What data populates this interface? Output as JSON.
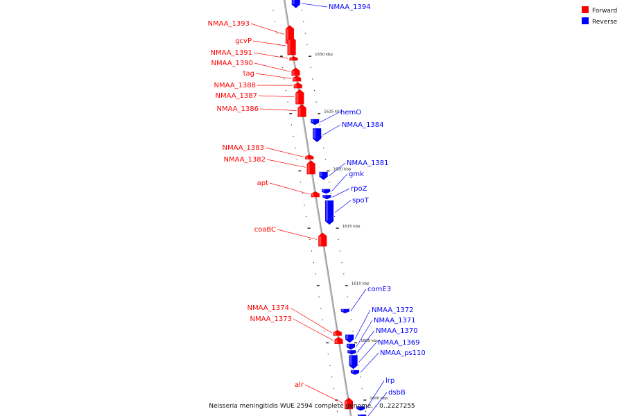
{
  "legend": {
    "forward": {
      "label": "Forward",
      "color": "#ff0000"
    },
    "reverse": {
      "label": "Reverse",
      "color": "#0000ff"
    }
  },
  "caption": "Neisseria meningitidis WUE 2594 complete genome. - 0..2227255",
  "backbone": {
    "top_kbp": 1634.9,
    "bottom_kbp": 1598.6,
    "color": "#999999"
  },
  "scale": {
    "labels": [
      {
        "kbp": 1630,
        "text": "1630 kbp"
      },
      {
        "kbp": 1625,
        "text": "1625 kbp"
      },
      {
        "kbp": 1620,
        "text": "1620 kbp"
      },
      {
        "kbp": 1615,
        "text": "1615 kbp"
      },
      {
        "kbp": 1610,
        "text": "1610 kbp"
      },
      {
        "kbp": 1605,
        "text": "1605 kbp"
      },
      {
        "kbp": 1600,
        "text": "1600 kbp"
      }
    ]
  },
  "forward_genes": [
    {
      "name": "NMAA_1393",
      "start": 1632.7,
      "end": 1631.1
    },
    {
      "name": "gcvP",
      "start": 1631.7,
      "end": 1630.1
    },
    {
      "name": "NMAA_1391",
      "start": 1629.9,
      "end": 1629.7
    },
    {
      "name": "NMAA_1390",
      "start": 1629.0,
      "end": 1628.3
    },
    {
      "name": "tag",
      "start": 1628.3,
      "end": 1627.8
    },
    {
      "name": "NMAA_1388",
      "start": 1627.7,
      "end": 1627.2
    },
    {
      "name": "NMAA_1387",
      "start": 1627.1,
      "end": 1625.8
    },
    {
      "name": "NMAA_1386",
      "start": 1625.8,
      "end": 1624.7
    },
    {
      "name": "NMAA_1383",
      "start": 1621.4,
      "end": 1621.0
    },
    {
      "name": "NMAA_1382",
      "start": 1620.9,
      "end": 1619.7
    },
    {
      "name": "apt",
      "start": 1618.2,
      "end": 1617.7
    },
    {
      "name": "coaBC",
      "start": 1614.6,
      "end": 1613.4
    },
    {
      "name": "NMAA_1374",
      "start": 1606.1,
      "end": 1605.6
    },
    {
      "name": "NMAA_1373",
      "start": 1605.5,
      "end": 1604.9
    },
    {
      "name": "alr",
      "start": 1600.2,
      "end": 1599.2
    }
  ],
  "reverse_genes": [
    {
      "name": "NMAA_1394",
      "start": 1634.2,
      "end": 1635.0
    },
    {
      "name": "hemO",
      "start": 1624.0,
      "end": 1624.5
    },
    {
      "name": "NMAA_1384",
      "start": 1622.5,
      "end": 1623.7
    },
    {
      "name": "NMAA_1381",
      "start": 1619.2,
      "end": 1619.9
    },
    {
      "name": "gmk",
      "start": 1618.0,
      "end": 1618.4
    },
    {
      "name": "rpoZ",
      "start": 1617.6,
      "end": 1617.8
    },
    {
      "name": "spoT",
      "start": 1615.3,
      "end": 1617.4
    },
    {
      "name": "comE3",
      "start": 1607.6,
      "end": 1607.9
    },
    {
      "name": "NMAA_1372",
      "start": 1605.0,
      "end": 1605.7
    },
    {
      "name": "NMAA_1371",
      "start": 1604.4,
      "end": 1604.9
    },
    {
      "name": "NMAA_1370",
      "start": 1604.0,
      "end": 1604.3
    },
    {
      "name": "NMAA_1369",
      "start": 1602.7,
      "end": 1603.9
    },
    {
      "name": "NMAA_ps110",
      "start": 1602.2,
      "end": 1602.6
    },
    {
      "name": "lrp",
      "start": 1599.1,
      "end": 1599.4
    },
    {
      "name": "dsbB",
      "start": 1598.4,
      "end": 1598.7
    }
  ]
}
